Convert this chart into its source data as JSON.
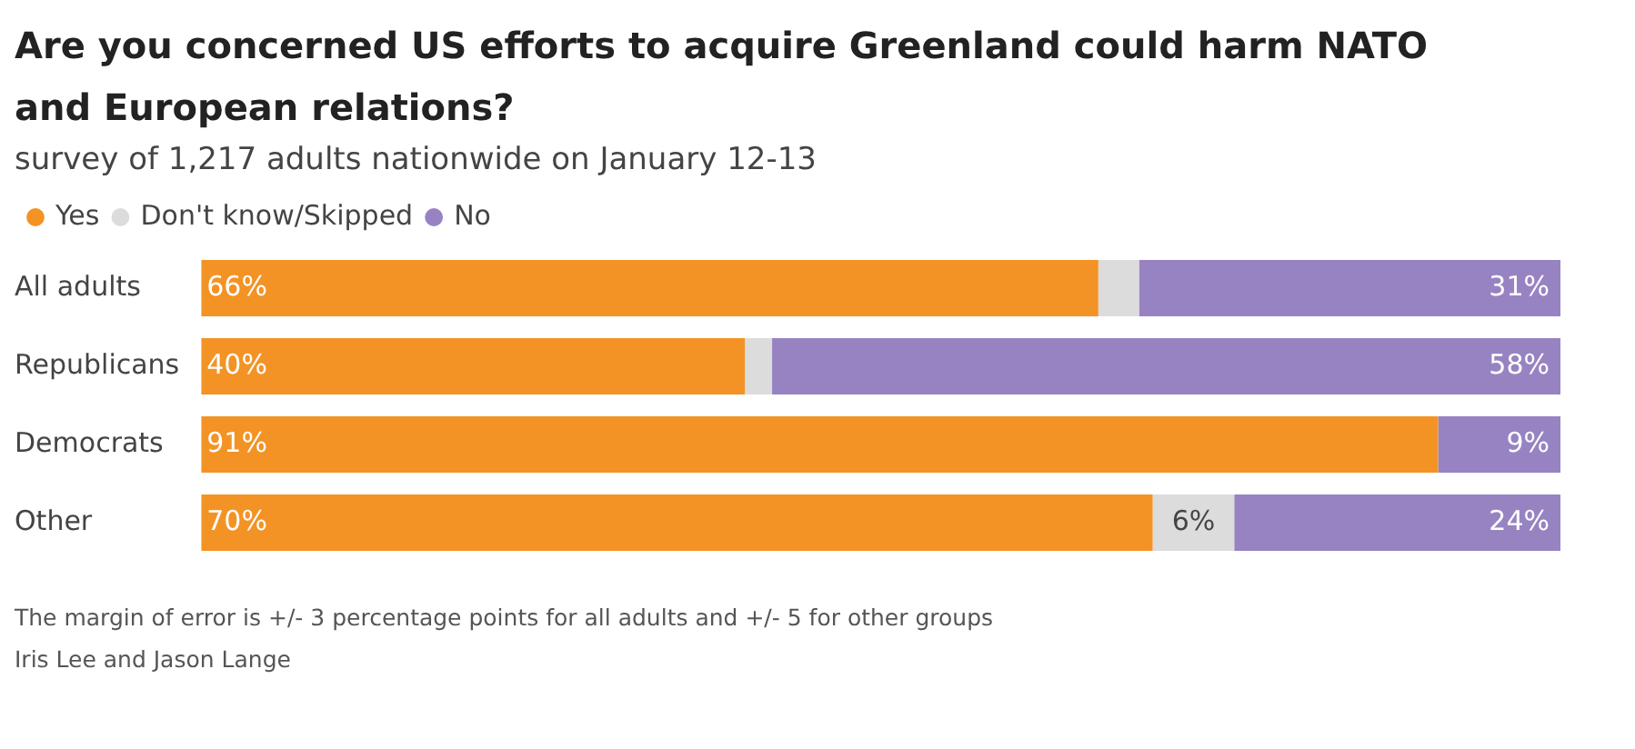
{
  "chart_data": {
    "type": "bar",
    "orientation": "horizontal",
    "stacked": true,
    "title": "Are you concerned US efforts to acquire Greenland could harm NATO and European relations?",
    "subtitle": "survey of 1,217 adults nationwide on January 12-13",
    "categories": [
      "All adults",
      "Republicans",
      "Democrats",
      "Other"
    ],
    "series": [
      {
        "name": "Yes",
        "color": "#f39325",
        "values": [
          66,
          40,
          91,
          70
        ],
        "value_labels": [
          "66%",
          "40%",
          "91%",
          "70%"
        ]
      },
      {
        "name": "Don't know/Skipped",
        "color": "#dcdcdc",
        "values": [
          3,
          2,
          0,
          6
        ],
        "value_labels": [
          null,
          null,
          null,
          "6%"
        ]
      },
      {
        "name": "No",
        "color": "#9783c2",
        "values": [
          31,
          58,
          9,
          24
        ],
        "value_labels": [
          "31%",
          "58%",
          "9%",
          "24%"
        ]
      }
    ],
    "xlim": [
      0,
      100
    ],
    "tick_labels": "y",
    "grid": false,
    "legend": "top left",
    "annotations": [
      "The margin of error is +/- 3 percentage points for all adults and +/- 5 for other groups",
      "Iris Lee and Jason Lange"
    ]
  }
}
